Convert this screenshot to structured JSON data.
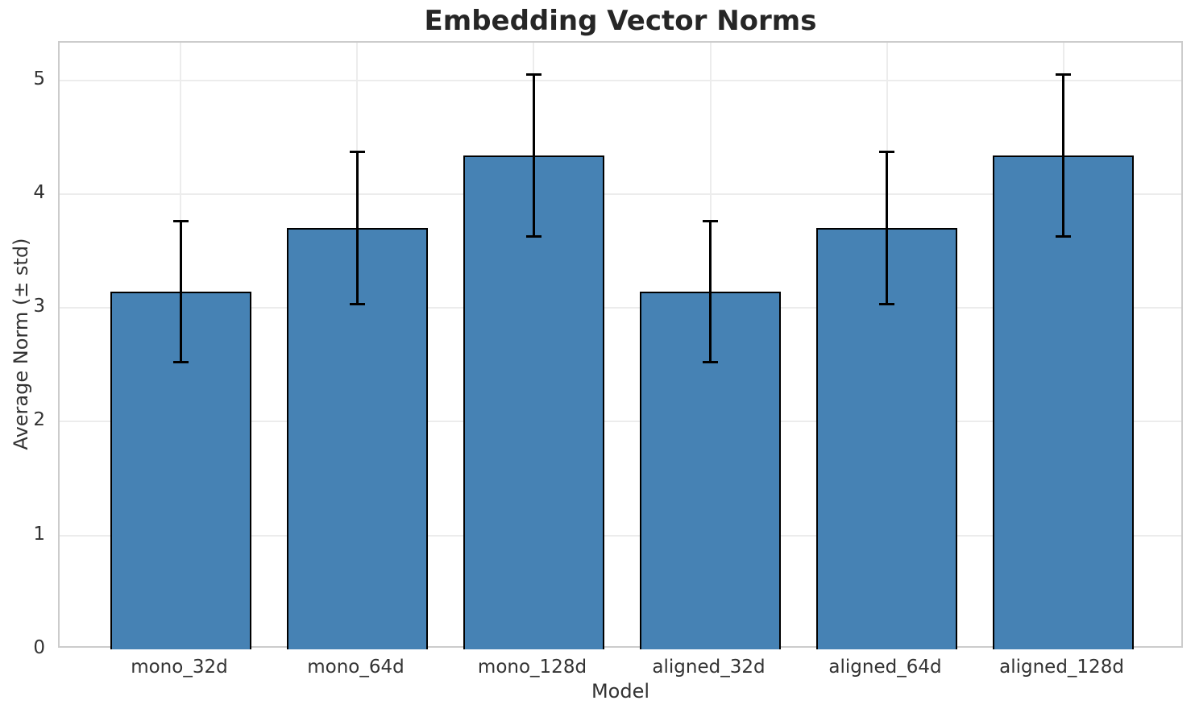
{
  "chart_data": {
    "type": "bar",
    "title": "Embedding Vector Norms",
    "xlabel": "Model",
    "ylabel": "Average Norm (± std)",
    "categories": [
      "mono_32d",
      "mono_64d",
      "mono_128d",
      "aligned_32d",
      "aligned_64d",
      "aligned_128d"
    ],
    "values": [
      3.14,
      3.7,
      4.34,
      3.14,
      3.7,
      4.34
    ],
    "errors": [
      0.62,
      0.67,
      0.71,
      0.62,
      0.67,
      0.71
    ],
    "ylim": [
      0,
      5.33
    ],
    "yticks": [
      0,
      1,
      2,
      3,
      4,
      5
    ],
    "grid": true,
    "legend_position": "none",
    "colors": {
      "bar_fill": "#4682b4",
      "bar_edge": "#000000",
      "error_bar": "#000000",
      "grid": "#ececec",
      "spine": "#cccccc",
      "title_text": "#262626",
      "tick_text": "#333333"
    }
  }
}
